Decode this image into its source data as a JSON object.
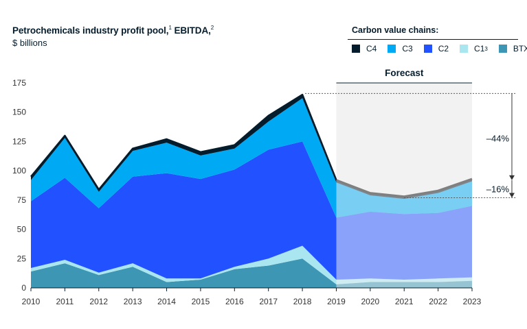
{
  "title": "Petrochemicals industry profit pool,",
  "title_sup1": "1",
  "title_mid": " EBITDA,",
  "title_sup2": "2",
  "subtitle": "$ billions",
  "legend_title": "Carbon value chains:",
  "colors": {
    "C4": "#051c2c",
    "C3": "#00a9f4",
    "C2": "#2251ff",
    "C1": "#aae6f0",
    "BTX": "#3c96b4",
    "forecast_bg": "#f2f2f2",
    "total_line": "#051c2c",
    "forecast_total_line": "#7f7f7f"
  },
  "chart_data": {
    "type": "area",
    "stacked": true,
    "x": [
      2010,
      2011,
      2012,
      2013,
      2014,
      2015,
      2016,
      2017,
      2018,
      2019,
      2020,
      2021,
      2022,
      2023
    ],
    "ylim": [
      0,
      175
    ],
    "yticks": [
      0,
      25,
      50,
      75,
      100,
      125,
      150,
      175
    ],
    "series": [
      {
        "key": "BTX",
        "name": "BTX",
        "sup": "4",
        "values": [
          14,
          21,
          11,
          18,
          5,
          7,
          16,
          19,
          25,
          3,
          5,
          5,
          5,
          6
        ]
      },
      {
        "key": "C1",
        "name": "C1",
        "sup": "3",
        "values": [
          3,
          3,
          2,
          3,
          3,
          1,
          2,
          6,
          11,
          4,
          3,
          2,
          3,
          3
        ]
      },
      {
        "key": "C2",
        "name": "C2",
        "sup": "",
        "values": [
          57,
          70,
          55,
          74,
          90,
          85,
          83,
          93,
          89,
          53,
          57,
          56,
          56,
          61
        ]
      },
      {
        "key": "C3",
        "name": "C3",
        "sup": "",
        "values": [
          18,
          34,
          14,
          22,
          26,
          20,
          18,
          24,
          37,
          30,
          14,
          13,
          17,
          21
        ]
      },
      {
        "key": "C4",
        "name": "C4",
        "sup": "",
        "values": [
          3,
          2,
          2,
          2,
          3,
          3,
          3,
          5,
          3,
          2,
          2,
          2,
          2,
          2
        ]
      }
    ],
    "legend_order": [
      "C4",
      "C3",
      "C2",
      "C1",
      "BTX"
    ],
    "forecast_start": 2019,
    "forecast_label": "Forecast",
    "annotations": [
      {
        "label": "–44%",
        "from_value": 166,
        "to_value": 92
      },
      {
        "label": "–16%",
        "from_value": 92,
        "to_value": 77
      }
    ],
    "grid": false,
    "legend_placement": "top-right"
  }
}
